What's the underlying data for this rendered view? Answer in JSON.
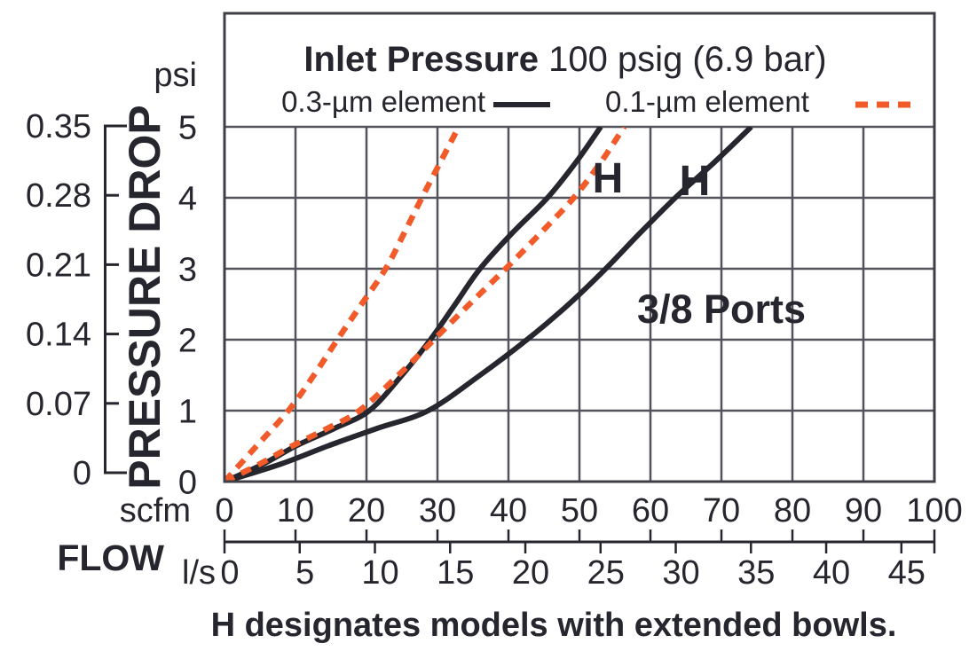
{
  "colors": {
    "ink": "#26262e",
    "orange": "#f15a29",
    "grid": "#53535b",
    "border": "#3f3f47",
    "background": "#ffffff"
  },
  "title": {
    "bold": "Inlet Pressure",
    "rest": " 100 psig (6.9 bar)"
  },
  "legend": {
    "items": [
      {
        "label": "0.3-µm element",
        "line": "solid",
        "color": "#26262e"
      },
      {
        "label": "0.1-µm element",
        "line": "dashed",
        "color": "#f15a29"
      }
    ]
  },
  "y_axis": {
    "label": "PRESSURE DROP",
    "psi_unit": "psi",
    "psi_ticks": [
      "5",
      "4",
      "3",
      "2",
      "1",
      "0"
    ],
    "bar_ticks": [
      "0.35",
      "0.28",
      "0.21",
      "0.14",
      "0.07",
      "0"
    ]
  },
  "x_axis": {
    "label": "FLOW",
    "scfm_unit": "scfm",
    "scfm_ticks": [
      "0",
      "10",
      "20",
      "30",
      "40",
      "50",
      "60",
      "70",
      "80",
      "90",
      "100"
    ],
    "ls_unit": "l/s",
    "ls_ticks": [
      "0",
      "5",
      "10",
      "15",
      "20",
      "25",
      "30",
      "35",
      "40",
      "45"
    ]
  },
  "annotations": {
    "ports_label": "3/8 Ports",
    "h_labels": [
      "H",
      "H"
    ]
  },
  "caption": "H designates models with extended bowls.",
  "chart_data": {
    "type": "line",
    "title": "Inlet Pressure 100 psig (6.9 bar)",
    "xlabel": "FLOW",
    "ylabel": "PRESSURE DROP",
    "x_axes": [
      {
        "unit": "scfm",
        "range": [
          0,
          100
        ],
        "ticks": [
          0,
          10,
          20,
          30,
          40,
          50,
          60,
          70,
          80,
          90,
          100
        ]
      },
      {
        "unit": "l/s",
        "range": [
          0,
          47.2
        ],
        "ticks": [
          0,
          5,
          10,
          15,
          20,
          25,
          30,
          35,
          40,
          45
        ]
      }
    ],
    "y_axes": [
      {
        "unit": "psi",
        "range": [
          0,
          5
        ],
        "ticks": [
          0,
          1,
          2,
          3,
          4,
          5
        ]
      },
      {
        "unit": "bar",
        "range": [
          0,
          0.35
        ],
        "ticks": [
          0,
          0.07,
          0.14,
          0.21,
          0.28,
          0.35
        ]
      }
    ],
    "grid": true,
    "legend_position": "top",
    "note": "points are [flow_scfm, pressure_drop_psi]",
    "series": [
      {
        "name": "0.3-µm element",
        "model": "standard",
        "color": "#26262e",
        "dash": "solid",
        "points": [
          [
            0,
            0
          ],
          [
            5.5,
            0.25
          ],
          [
            10,
            0.5
          ],
          [
            15.5,
            0.75
          ],
          [
            20.4,
            1
          ],
          [
            25,
            1.5
          ],
          [
            29,
            2
          ],
          [
            32.5,
            2.5
          ],
          [
            36,
            3
          ],
          [
            40.5,
            3.5
          ],
          [
            45.5,
            4
          ],
          [
            49.5,
            4.5
          ],
          [
            53,
            5
          ]
        ]
      },
      {
        "name": "0.3-µm element",
        "model": "H (extended bowl)",
        "color": "#26262e",
        "dash": "solid",
        "points": [
          [
            0,
            0
          ],
          [
            8,
            0.25
          ],
          [
            14.5,
            0.5
          ],
          [
            21.5,
            0.75
          ],
          [
            28.7,
            1
          ],
          [
            36,
            1.5
          ],
          [
            42.6,
            2
          ],
          [
            48.5,
            2.5
          ],
          [
            53.7,
            3
          ],
          [
            58.5,
            3.5
          ],
          [
            63.5,
            4
          ],
          [
            69,
            4.5
          ],
          [
            74.2,
            5
          ]
        ]
      },
      {
        "name": "0.1-µm element",
        "model": "standard",
        "color": "#f15a29",
        "dash": "dashed",
        "points": [
          [
            0,
            0
          ],
          [
            4.5,
            0.5
          ],
          [
            9,
            1
          ],
          [
            12.6,
            1.5
          ],
          [
            15.9,
            2
          ],
          [
            19.3,
            2.5
          ],
          [
            22.7,
            3
          ],
          [
            25.3,
            3.5
          ],
          [
            27.8,
            4
          ],
          [
            30.4,
            4.5
          ],
          [
            33,
            5
          ]
        ]
      },
      {
        "name": "0.1-µm element",
        "model": "H (extended bowl)",
        "color": "#f15a29",
        "dash": "dashed",
        "points": [
          [
            0,
            0
          ],
          [
            5,
            0.25
          ],
          [
            9.5,
            0.5
          ],
          [
            14.5,
            0.75
          ],
          [
            19,
            1
          ],
          [
            24.5,
            1.5
          ],
          [
            29.5,
            2
          ],
          [
            34.5,
            2.5
          ],
          [
            39.6,
            3
          ],
          [
            44.5,
            3.5
          ],
          [
            49.2,
            4
          ],
          [
            53,
            4.5
          ],
          [
            56.3,
            5
          ]
        ]
      }
    ],
    "annotations": [
      "3/8 Ports",
      "H designates models with extended bowls."
    ]
  }
}
